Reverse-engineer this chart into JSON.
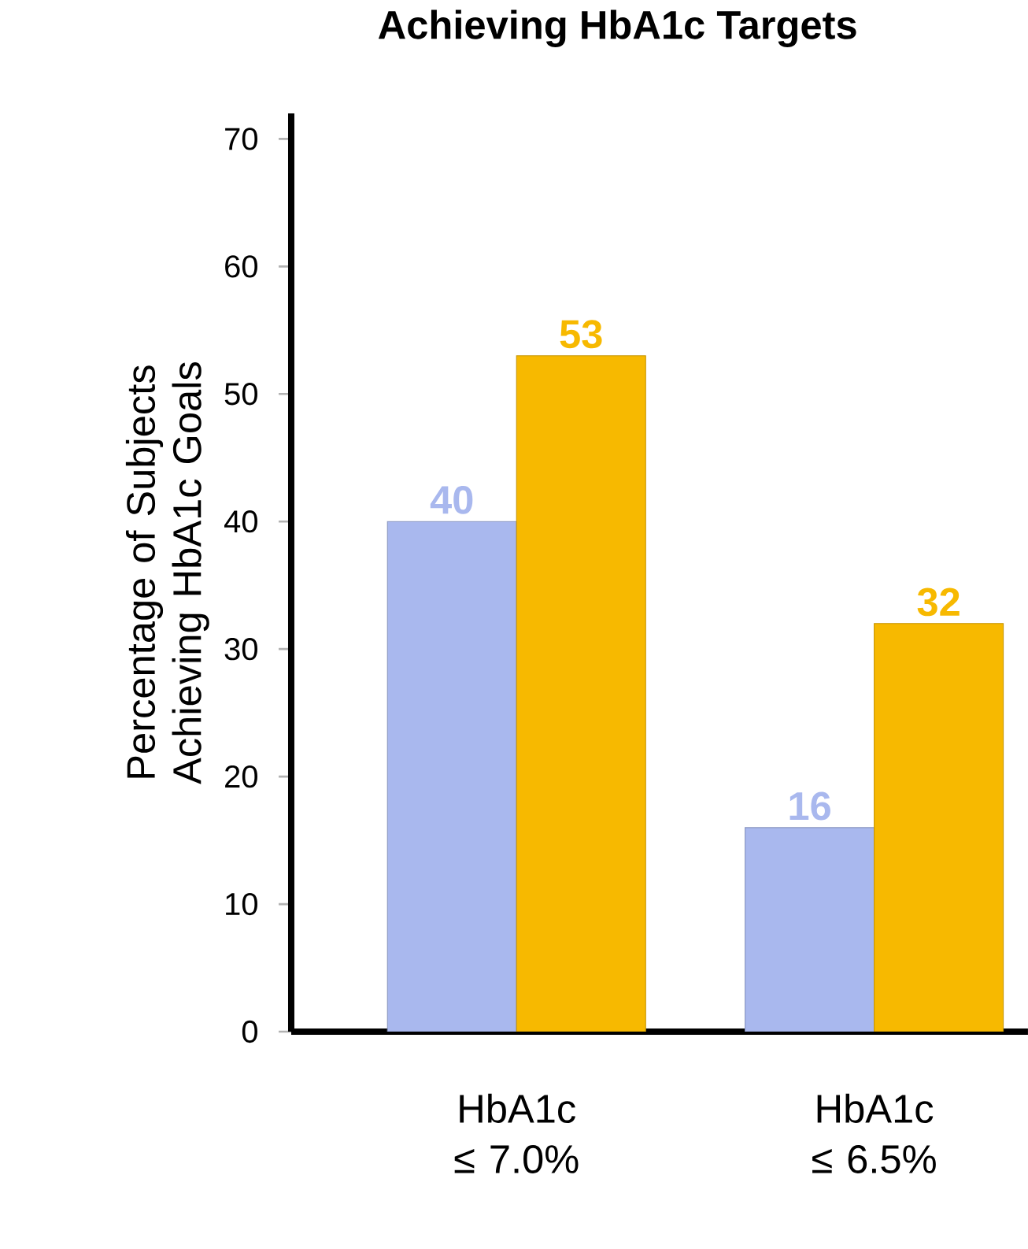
{
  "chart_data": {
    "type": "bar",
    "title": "Achieving HbA1c Targets",
    "ylabel": "Percentage of Subjects Achieving HbA1c Goals",
    "categories": [
      "HbA1c ≤ 7.0%",
      "HbA1c ≤ 6.5%"
    ],
    "series": [
      {
        "color": "#a9b8ee",
        "values": [
          40,
          16
        ]
      },
      {
        "color": "#f7b900",
        "values": [
          53,
          32
        ]
      }
    ],
    "ylim": [
      0,
      72
    ],
    "yticks": [
      0,
      10,
      20,
      30,
      40,
      50,
      60,
      70
    ],
    "data_labels": true
  }
}
